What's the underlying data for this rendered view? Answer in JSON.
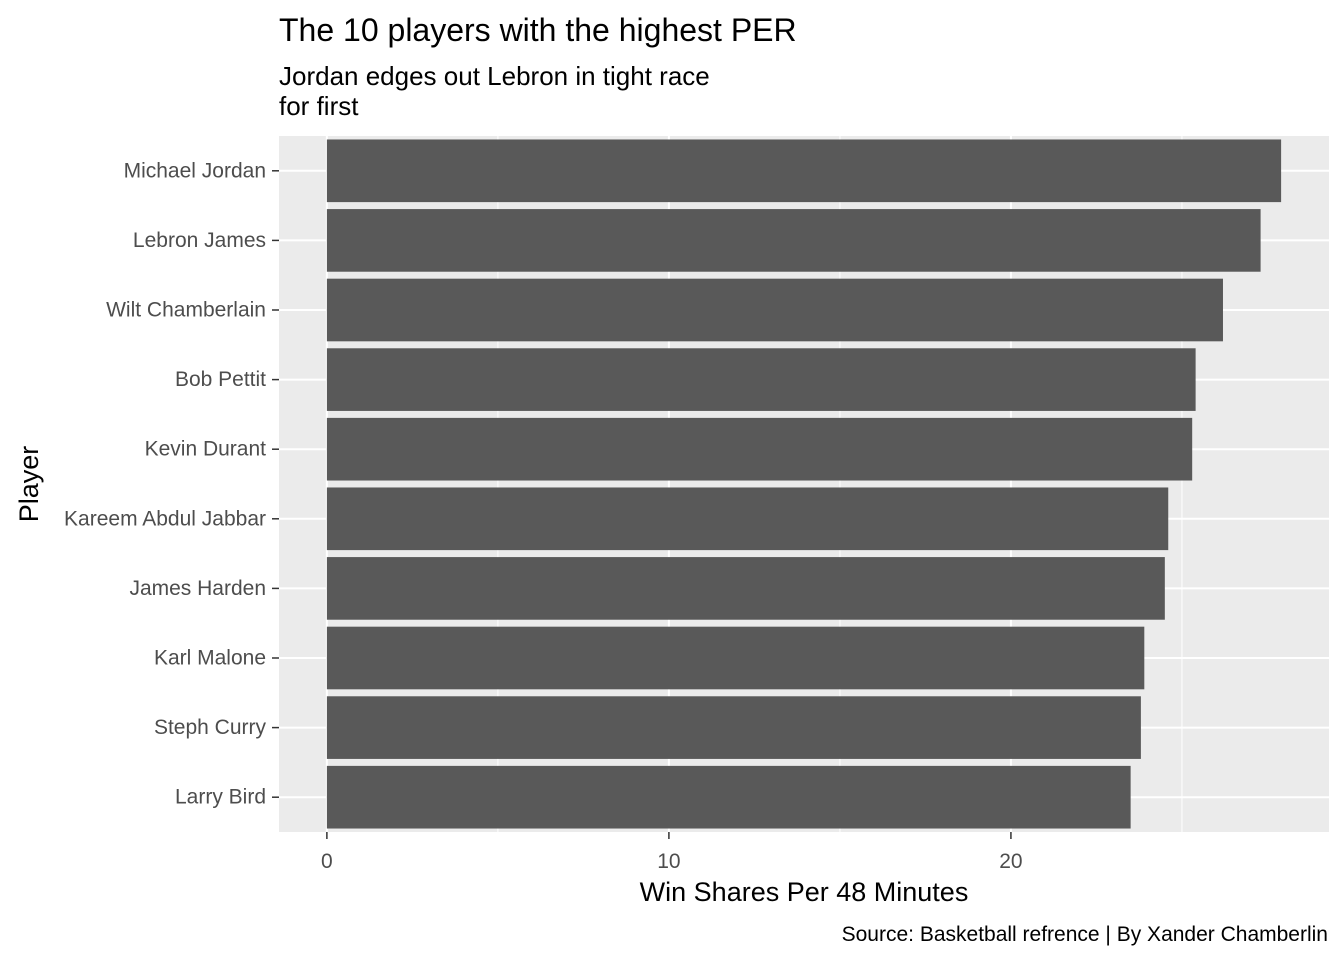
{
  "chart_data": {
    "type": "bar",
    "orientation": "horizontal",
    "title": "The 10 players with the highest PER",
    "subtitle_lines": [
      "Jordan edges out Lebron in tight race",
      "for first"
    ],
    "xlabel": "Win Shares Per 48 Minutes",
    "ylabel": "Player",
    "caption": "Source: Basketball refrence | By Xander Chamberlin",
    "categories": [
      "Michael Jordan",
      "Lebron James",
      "Wilt Chamberlain",
      "Bob Pettit",
      "Kevin Durant",
      "Kareem Abdul Jabbar",
      "James Harden",
      "Karl Malone",
      "Steph Curry",
      "Larry Bird"
    ],
    "values": [
      27.9,
      27.3,
      26.2,
      25.4,
      25.3,
      24.6,
      24.5,
      23.9,
      23.8,
      23.5
    ],
    "xlim": [
      -1.4,
      29.3
    ],
    "xticks": [
      0,
      10,
      20
    ],
    "grid": true,
    "bar_color": "#595959",
    "panel_color": "#ebebeb",
    "grid_color": "#ffffff"
  }
}
